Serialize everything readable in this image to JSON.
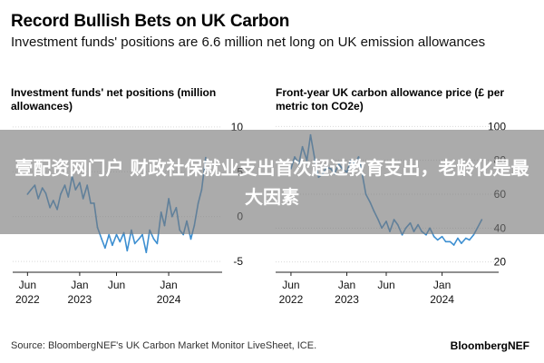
{
  "title": "Record Bullish Bets on UK Carbon",
  "subtitle": "Investment funds' positions are 6.6 million net long on UK emission allowances",
  "banner": "壹配资网门户 财政社保就业支出首次超过教育支出，老龄化是最大因素",
  "source": "Source: BloombergNEF's UK Carbon Market Monitor LiveSheet, ICE.",
  "brand": "BloombergNEF",
  "colors": {
    "line": "#3d8fd1",
    "text": "#000000",
    "axis": "#222222"
  },
  "chart_data": [
    {
      "type": "line",
      "title": "Investment funds' net positions (million allowances)",
      "xlim": [
        "2022-05-01",
        "2024-07-01"
      ],
      "ylim": [
        -6,
        11
      ],
      "yticks": [
        10,
        5,
        0,
        -5
      ],
      "xticks": [
        {
          "date": "2022-06-01",
          "line1": "Jun",
          "line2": "2022"
        },
        {
          "date": "2023-01-01",
          "line1": "Jan",
          "line2": "2023"
        },
        {
          "date": "2023-06-01",
          "line1": "Jun",
          "line2": ""
        },
        {
          "date": "2024-01-01",
          "line1": "Jan",
          "line2": "2024"
        }
      ],
      "series": [
        {
          "x": [
            "2022-06-01",
            "2022-06-15",
            "2022-07-01",
            "2022-07-15",
            "2022-08-01",
            "2022-08-15",
            "2022-09-01",
            "2022-09-15",
            "2022-10-01",
            "2022-10-15",
            "2022-11-01",
            "2022-11-15",
            "2022-12-01",
            "2022-12-15",
            "2023-01-01",
            "2023-01-15",
            "2023-02-01",
            "2023-02-15",
            "2023-03-01",
            "2023-03-15",
            "2023-04-01",
            "2023-04-15",
            "2023-05-01",
            "2023-05-15",
            "2023-06-01",
            "2023-06-15",
            "2023-07-01",
            "2023-07-15",
            "2023-08-01",
            "2023-08-15",
            "2023-09-01",
            "2023-09-15",
            "2023-10-01",
            "2023-10-15",
            "2023-11-01",
            "2023-11-15",
            "2023-12-01",
            "2023-12-15",
            "2024-01-01",
            "2024-01-15",
            "2024-02-01",
            "2024-02-15",
            "2024-03-01",
            "2024-03-15",
            "2024-04-01",
            "2024-04-15",
            "2024-05-01",
            "2024-05-15",
            "2024-06-01"
          ],
          "y": [
            2.5,
            3.0,
            3.5,
            2.0,
            3.2,
            2.6,
            1.0,
            1.8,
            0.8,
            2.5,
            3.5,
            2.2,
            4.5,
            3.0,
            3.8,
            2.0,
            3.5,
            1.5,
            1.5,
            -1.2,
            -2.5,
            -3.5,
            -2.0,
            -3.2,
            -2.0,
            -2.8,
            -1.8,
            -3.8,
            -1.5,
            -3.0,
            -2.5,
            -2.0,
            -4.0,
            -1.5,
            -2.5,
            -3.0,
            0.5,
            -1.0,
            2.0,
            0.0,
            1.0,
            -1.5,
            -2.0,
            -0.5,
            -2.5,
            -1.0,
            1.5,
            3.0,
            6.6
          ]
        }
      ]
    },
    {
      "type": "line",
      "title": "Front-year UK carbon allowance price (£ per metric ton CO2e)",
      "xlim": [
        "2022-05-01",
        "2024-07-01"
      ],
      "ylim": [
        15,
        105
      ],
      "yticks": [
        100,
        80,
        60,
        40,
        20
      ],
      "xticks": [
        {
          "date": "2022-06-01",
          "line1": "Jun",
          "line2": "2022"
        },
        {
          "date": "2023-01-01",
          "line1": "Jan",
          "line2": "2023"
        },
        {
          "date": "2023-06-01",
          "line1": "Jun",
          "line2": ""
        },
        {
          "date": "2024-01-01",
          "line1": "Jan",
          "line2": "2024"
        }
      ],
      "series": [
        {
          "x": [
            "2022-06-01",
            "2022-06-15",
            "2022-07-01",
            "2022-07-15",
            "2022-08-01",
            "2022-08-15",
            "2022-09-01",
            "2022-09-15",
            "2022-10-01",
            "2022-10-15",
            "2022-11-01",
            "2022-11-15",
            "2022-12-01",
            "2022-12-15",
            "2023-01-01",
            "2023-01-15",
            "2023-02-01",
            "2023-02-15",
            "2023-03-01",
            "2023-03-15",
            "2023-04-01",
            "2023-04-15",
            "2023-05-01",
            "2023-05-15",
            "2023-06-01",
            "2023-06-15",
            "2023-07-01",
            "2023-07-15",
            "2023-08-01",
            "2023-08-15",
            "2023-09-01",
            "2023-09-15",
            "2023-10-01",
            "2023-10-15",
            "2023-11-01",
            "2023-11-15",
            "2023-12-01",
            "2023-12-15",
            "2024-01-01",
            "2024-01-15",
            "2024-02-01",
            "2024-02-15",
            "2024-03-01",
            "2024-03-15",
            "2024-04-01",
            "2024-04-15",
            "2024-05-01",
            "2024-05-15",
            "2024-06-01"
          ],
          "y": [
            75,
            82,
            78,
            88,
            80,
            95,
            80,
            70,
            72,
            76,
            75,
            72,
            78,
            75,
            73,
            80,
            78,
            82,
            72,
            60,
            55,
            50,
            45,
            40,
            44,
            38,
            45,
            42,
            36,
            40,
            43,
            38,
            42,
            38,
            36,
            40,
            35,
            33,
            35,
            32,
            32,
            30,
            34,
            31,
            34,
            33,
            36,
            40,
            45
          ]
        }
      ]
    }
  ]
}
